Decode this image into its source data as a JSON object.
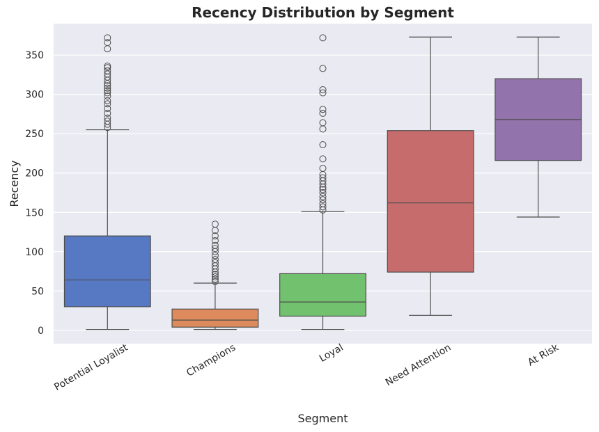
{
  "chart_data": {
    "type": "box",
    "title": "Recency Distribution by Segment",
    "xlabel": "Segment",
    "ylabel": "Recency",
    "ylim": [
      -17,
      390
    ],
    "yticks": [
      0,
      50,
      100,
      150,
      200,
      250,
      300,
      350
    ],
    "grid": true,
    "legend": "none",
    "colors": {
      "background": "#eaeaf2",
      "grid": "#ffffff",
      "line": "#4d4d4d"
    },
    "categories": [
      "Potential Loyalist",
      "Champions",
      "Loyal",
      "Need Attention",
      "At Risk"
    ],
    "boxes": [
      {
        "category": "Potential Loyalist",
        "color": "#5778c2",
        "whisker_low": 1,
        "q1": 30,
        "median": 64,
        "q3": 120,
        "whisker_high": 255,
        "outliers": [
          258,
          262,
          266,
          270,
          276,
          282,
          288,
          292,
          298,
          302,
          305,
          308,
          311,
          314,
          318,
          322,
          326,
          330,
          334,
          336,
          358,
          366,
          372
        ]
      },
      {
        "category": "Champions",
        "color": "#dd8a5d",
        "whisker_low": 1,
        "q1": 4,
        "median": 13,
        "q3": 27,
        "whisker_high": 60,
        "outliers": [
          62,
          65,
          68,
          71,
          74,
          78,
          82,
          86,
          90,
          95,
          100,
          104,
          108,
          114,
          120,
          127,
          135
        ]
      },
      {
        "category": "Loyal",
        "color": "#72c16f",
        "whisker_low": 1,
        "q1": 18,
        "median": 36,
        "q3": 72,
        "whisker_high": 151,
        "outliers": [
          153,
          157,
          161,
          166,
          170,
          175,
          179,
          182,
          186,
          190,
          194,
          198,
          206,
          218,
          236,
          256,
          264,
          276,
          281,
          302,
          306,
          333,
          372
        ]
      },
      {
        "category": "Need Attention",
        "color": "#c76c6c",
        "whisker_low": 19,
        "q1": 74,
        "median": 162,
        "q3": 254,
        "whisker_high": 373,
        "outliers": []
      },
      {
        "category": "At Risk",
        "color": "#9373ac",
        "whisker_low": 144,
        "q1": 216,
        "median": 268,
        "q3": 320,
        "whisker_high": 373,
        "outliers": []
      }
    ]
  }
}
